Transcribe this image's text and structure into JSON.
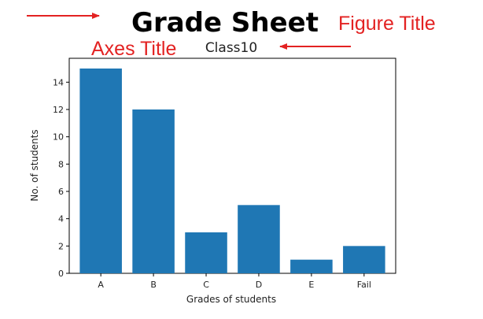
{
  "chart_data": {
    "type": "bar",
    "suptitle": "Grade Sheet",
    "title": "Class10",
    "xlabel": "Grades of students",
    "ylabel": "No. of students",
    "categories": [
      "A",
      "B",
      "C",
      "D",
      "E",
      "Fail"
    ],
    "values": [
      15,
      12,
      3,
      5,
      1,
      2
    ],
    "ylim": [
      0,
      15.75
    ],
    "yticks": [
      0,
      2,
      4,
      6,
      8,
      10,
      12,
      14
    ],
    "grid": false,
    "bar_color": "#1f77b4"
  },
  "annotations": {
    "figure_title_label": "Figure Title",
    "axes_title_label": "Axes Title",
    "color": "#e32222"
  }
}
